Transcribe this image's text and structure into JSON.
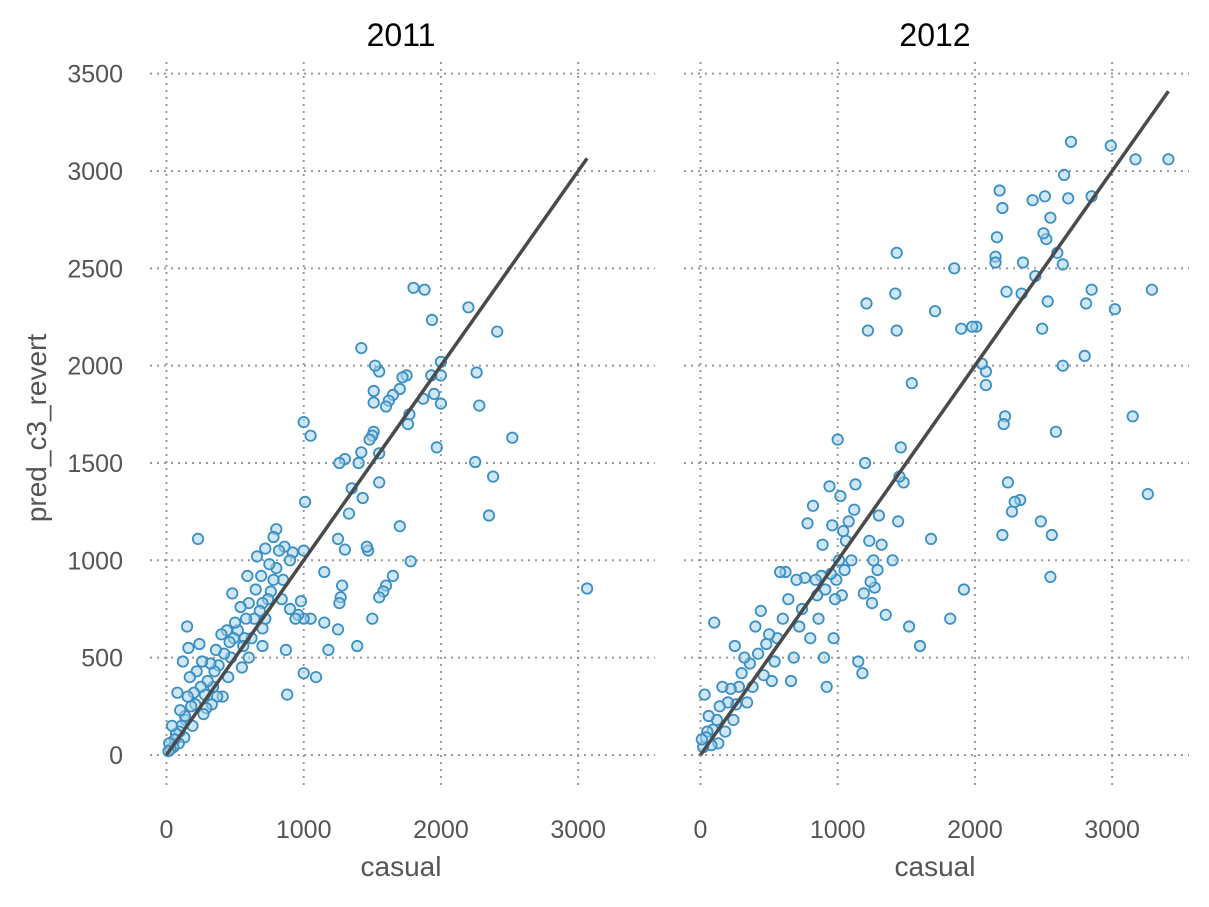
{
  "chart_data": [
    {
      "type": "scatter",
      "title": "2011",
      "xlabel": "casual",
      "ylabel": "pred_c3_revert",
      "xlim": [
        -120,
        3560
      ],
      "ylim": [
        -180,
        3560
      ],
      "xticks": [
        0,
        1000,
        2000,
        3000
      ],
      "yticks": [
        0,
        500,
        1000,
        1500,
        2000,
        2500,
        3000,
        3500
      ],
      "grid": true,
      "colors": {
        "point_stroke": "#3a8fc4",
        "point_fill": "#a6d4ea",
        "fit_line": "#4a4a4a"
      },
      "fit_line": {
        "x": [
          0,
          3065
        ],
        "y": [
          0,
          3065
        ]
      },
      "points": [
        [
          3065,
          855
        ],
        [
          2520,
          1630
        ],
        [
          2410,
          2175
        ],
        [
          2380,
          1430
        ],
        [
          2350,
          1230
        ],
        [
          2280,
          1795
        ],
        [
          2260,
          1965
        ],
        [
          2250,
          1505
        ],
        [
          2200,
          2300
        ],
        [
          2000,
          2020
        ],
        [
          2000,
          1950
        ],
        [
          2000,
          1805
        ],
        [
          1970,
          1580
        ],
        [
          1950,
          1855
        ],
        [
          1935,
          2235
        ],
        [
          1930,
          1950
        ],
        [
          1880,
          2390
        ],
        [
          1800,
          2400
        ],
        [
          1870,
          1830
        ],
        [
          1770,
          1750
        ],
        [
          1760,
          1700
        ],
        [
          1780,
          995
        ],
        [
          1750,
          1950
        ],
        [
          1720,
          1940
        ],
        [
          1700,
          1880
        ],
        [
          1700,
          1175
        ],
        [
          1650,
          1850
        ],
        [
          1620,
          1820
        ],
        [
          1600,
          1790
        ],
        [
          1650,
          920
        ],
        [
          1600,
          870
        ],
        [
          1580,
          840
        ],
        [
          1550,
          1970
        ],
        [
          1550,
          1550
        ],
        [
          1550,
          1400
        ],
        [
          1550,
          810
        ],
        [
          1520,
          2000
        ],
        [
          1510,
          1870
        ],
        [
          1510,
          1810
        ],
        [
          1510,
          1660
        ],
        [
          1500,
          1640
        ],
        [
          1500,
          700
        ],
        [
          1480,
          1620
        ],
        [
          1470,
          1050
        ],
        [
          1460,
          1070
        ],
        [
          1430,
          1320
        ],
        [
          1420,
          2090
        ],
        [
          1420,
          1555
        ],
        [
          1400,
          1500
        ],
        [
          1390,
          560
        ],
        [
          1350,
          1370
        ],
        [
          1330,
          1240
        ],
        [
          1300,
          1520
        ],
        [
          1300,
          1055
        ],
        [
          1280,
          870
        ],
        [
          1270,
          810
        ],
        [
          1260,
          780
        ],
        [
          1260,
          1500
        ],
        [
          1250,
          1110
        ],
        [
          1250,
          645
        ],
        [
          1180,
          540
        ],
        [
          1150,
          940
        ],
        [
          1150,
          680
        ],
        [
          1090,
          400
        ],
        [
          1050,
          1640
        ],
        [
          1050,
          700
        ],
        [
          1010,
          1300
        ],
        [
          1000,
          1710
        ],
        [
          1000,
          1050
        ],
        [
          1000,
          700
        ],
        [
          1000,
          420
        ],
        [
          980,
          790
        ],
        [
          960,
          720
        ],
        [
          940,
          700
        ],
        [
          920,
          1040
        ],
        [
          900,
          1000
        ],
        [
          900,
          750
        ],
        [
          880,
          310
        ],
        [
          870,
          540
        ],
        [
          860,
          1070
        ],
        [
          850,
          900
        ],
        [
          840,
          800
        ],
        [
          820,
          1050
        ],
        [
          800,
          1160
        ],
        [
          800,
          960
        ],
        [
          780,
          1120
        ],
        [
          780,
          900
        ],
        [
          760,
          840
        ],
        [
          750,
          980
        ],
        [
          740,
          800
        ],
        [
          720,
          1060
        ],
        [
          720,
          700
        ],
        [
          700,
          780
        ],
        [
          700,
          650
        ],
        [
          700,
          560
        ],
        [
          690,
          920
        ],
        [
          680,
          740
        ],
        [
          660,
          1020
        ],
        [
          650,
          850
        ],
        [
          640,
          700
        ],
        [
          620,
          600
        ],
        [
          600,
          780
        ],
        [
          600,
          500
        ],
        [
          590,
          920
        ],
        [
          580,
          700
        ],
        [
          570,
          600
        ],
        [
          560,
          560
        ],
        [
          550,
          450
        ],
        [
          540,
          760
        ],
        [
          520,
          640
        ],
        [
          500,
          680
        ],
        [
          490,
          600
        ],
        [
          480,
          830
        ],
        [
          470,
          500
        ],
        [
          460,
          580
        ],
        [
          450,
          400
        ],
        [
          440,
          640
        ],
        [
          420,
          520
        ],
        [
          410,
          300
        ],
        [
          400,
          620
        ],
        [
          380,
          460
        ],
        [
          370,
          300
        ],
        [
          360,
          540
        ],
        [
          350,
          430
        ],
        [
          340,
          350
        ],
        [
          330,
          260
        ],
        [
          320,
          470
        ],
        [
          300,
          380
        ],
        [
          290,
          240
        ],
        [
          280,
          310
        ],
        [
          270,
          210
        ],
        [
          260,
          480
        ],
        [
          250,
          350
        ],
        [
          240,
          570
        ],
        [
          230,
          1110
        ],
        [
          220,
          430
        ],
        [
          210,
          260
        ],
        [
          200,
          320
        ],
        [
          190,
          150
        ],
        [
          180,
          250
        ],
        [
          170,
          400
        ],
        [
          160,
          550
        ],
        [
          155,
          300
        ],
        [
          150,
          660
        ],
        [
          140,
          180
        ],
        [
          135,
          200
        ],
        [
          130,
          90
        ],
        [
          120,
          480
        ],
        [
          110,
          150
        ],
        [
          100,
          230
        ],
        [
          95,
          120
        ],
        [
          90,
          60
        ],
        [
          80,
          320
        ],
        [
          70,
          110
        ],
        [
          60,
          80
        ],
        [
          50,
          40
        ],
        [
          40,
          150
        ],
        [
          30,
          30
        ],
        [
          20,
          60
        ],
        [
          15,
          20
        ]
      ]
    },
    {
      "type": "scatter",
      "title": "2012",
      "xlabel": "casual",
      "ylabel": "",
      "xlim": [
        -120,
        3560
      ],
      "ylim": [
        -180,
        3560
      ],
      "xticks": [
        0,
        1000,
        2000,
        3000
      ],
      "yticks": [
        0,
        500,
        1000,
        1500,
        2000,
        2500,
        3000,
        3500
      ],
      "grid": true,
      "colors": {
        "point_stroke": "#3a8fc4",
        "point_fill": "#a6d4ea",
        "fit_line": "#4a4a4a"
      },
      "fit_line": {
        "x": [
          0,
          3410
        ],
        "y": [
          0,
          3410
        ]
      },
      "points": [
        [
          3410,
          3060
        ],
        [
          3290,
          2390
        ],
        [
          3260,
          1340
        ],
        [
          3170,
          3060
        ],
        [
          3150,
          1740
        ],
        [
          3020,
          2290
        ],
        [
          2990,
          3130
        ],
        [
          2850,
          2870
        ],
        [
          2850,
          2390
        ],
        [
          2810,
          2320
        ],
        [
          2800,
          2050
        ],
        [
          2700,
          3150
        ],
        [
          2680,
          2860
        ],
        [
          2650,
          2980
        ],
        [
          2640,
          2520
        ],
        [
          2640,
          2000
        ],
        [
          2600,
          2580
        ],
        [
          2590,
          1660
        ],
        [
          2560,
          1130
        ],
        [
          2550,
          915
        ],
        [
          2550,
          2760
        ],
        [
          2530,
          2330
        ],
        [
          2520,
          2650
        ],
        [
          2510,
          2870
        ],
        [
          2500,
          2680
        ],
        [
          2490,
          2190
        ],
        [
          2480,
          1200
        ],
        [
          2440,
          2460
        ],
        [
          2420,
          2850
        ],
        [
          2350,
          2530
        ],
        [
          2340,
          2370
        ],
        [
          2330,
          1310
        ],
        [
          2290,
          1300
        ],
        [
          2270,
          1250
        ],
        [
          2240,
          1400
        ],
        [
          2230,
          2380
        ],
        [
          2220,
          1740
        ],
        [
          2210,
          1700
        ],
        [
          2200,
          2810
        ],
        [
          2180,
          2900
        ],
        [
          2160,
          2660
        ],
        [
          2150,
          2560
        ],
        [
          2150,
          2530
        ],
        [
          2200,
          1130
        ],
        [
          2080,
          1970
        ],
        [
          2080,
          1900
        ],
        [
          2050,
          2010
        ],
        [
          2010,
          2200
        ],
        [
          1980,
          2200
        ],
        [
          1920,
          850
        ],
        [
          1900,
          2190
        ],
        [
          1850,
          2500
        ],
        [
          1820,
          700
        ],
        [
          1710,
          2280
        ],
        [
          1680,
          1110
        ],
        [
          1600,
          560
        ],
        [
          1540,
          1910
        ],
        [
          1520,
          660
        ],
        [
          1480,
          1400
        ],
        [
          1460,
          1580
        ],
        [
          1450,
          1430
        ],
        [
          1440,
          1200
        ],
        [
          1430,
          2180
        ],
        [
          1430,
          2580
        ],
        [
          1420,
          2370
        ],
        [
          1400,
          1000
        ],
        [
          1350,
          720
        ],
        [
          1320,
          1080
        ],
        [
          1300,
          1230
        ],
        [
          1290,
          950
        ],
        [
          1270,
          860
        ],
        [
          1260,
          1000
        ],
        [
          1250,
          780
        ],
        [
          1240,
          890
        ],
        [
          1230,
          1100
        ],
        [
          1220,
          2180
        ],
        [
          1210,
          2320
        ],
        [
          1200,
          1500
        ],
        [
          1190,
          830
        ],
        [
          1180,
          420
        ],
        [
          1150,
          480
        ],
        [
          1130,
          1390
        ],
        [
          1120,
          1260
        ],
        [
          1100,
          1000
        ],
        [
          1080,
          1200
        ],
        [
          1060,
          1100
        ],
        [
          1050,
          950
        ],
        [
          1040,
          1150
        ],
        [
          1030,
          820
        ],
        [
          1020,
          1330
        ],
        [
          1010,
          1000
        ],
        [
          1000,
          1620
        ],
        [
          990,
          900
        ],
        [
          980,
          800
        ],
        [
          970,
          600
        ],
        [
          960,
          1180
        ],
        [
          950,
          930
        ],
        [
          940,
          1380
        ],
        [
          920,
          350
        ],
        [
          910,
          850
        ],
        [
          900,
          500
        ],
        [
          890,
          1080
        ],
        [
          880,
          920
        ],
        [
          860,
          700
        ],
        [
          850,
          820
        ],
        [
          840,
          900
        ],
        [
          820,
          1280
        ],
        [
          800,
          600
        ],
        [
          780,
          1190
        ],
        [
          760,
          910
        ],
        [
          740,
          750
        ],
        [
          720,
          660
        ],
        [
          700,
          900
        ],
        [
          680,
          500
        ],
        [
          660,
          380
        ],
        [
          640,
          800
        ],
        [
          620,
          940
        ],
        [
          600,
          700
        ],
        [
          580,
          940
        ],
        [
          560,
          600
        ],
        [
          540,
          480
        ],
        [
          520,
          380
        ],
        [
          500,
          620
        ],
        [
          480,
          570
        ],
        [
          460,
          410
        ],
        [
          440,
          740
        ],
        [
          420,
          520
        ],
        [
          400,
          660
        ],
        [
          380,
          350
        ],
        [
          360,
          470
        ],
        [
          340,
          270
        ],
        [
          320,
          500
        ],
        [
          300,
          420
        ],
        [
          280,
          350
        ],
        [
          260,
          260
        ],
        [
          250,
          560
        ],
        [
          240,
          180
        ],
        [
          220,
          340
        ],
        [
          200,
          270
        ],
        [
          180,
          120
        ],
        [
          160,
          350
        ],
        [
          140,
          250
        ],
        [
          130,
          60
        ],
        [
          120,
          180
        ],
        [
          100,
          680
        ],
        [
          90,
          130
        ],
        [
          80,
          50
        ],
        [
          60,
          200
        ],
        [
          50,
          120
        ],
        [
          40,
          90
        ],
        [
          30,
          310
        ],
        [
          20,
          40
        ],
        [
          10,
          80
        ]
      ]
    }
  ]
}
